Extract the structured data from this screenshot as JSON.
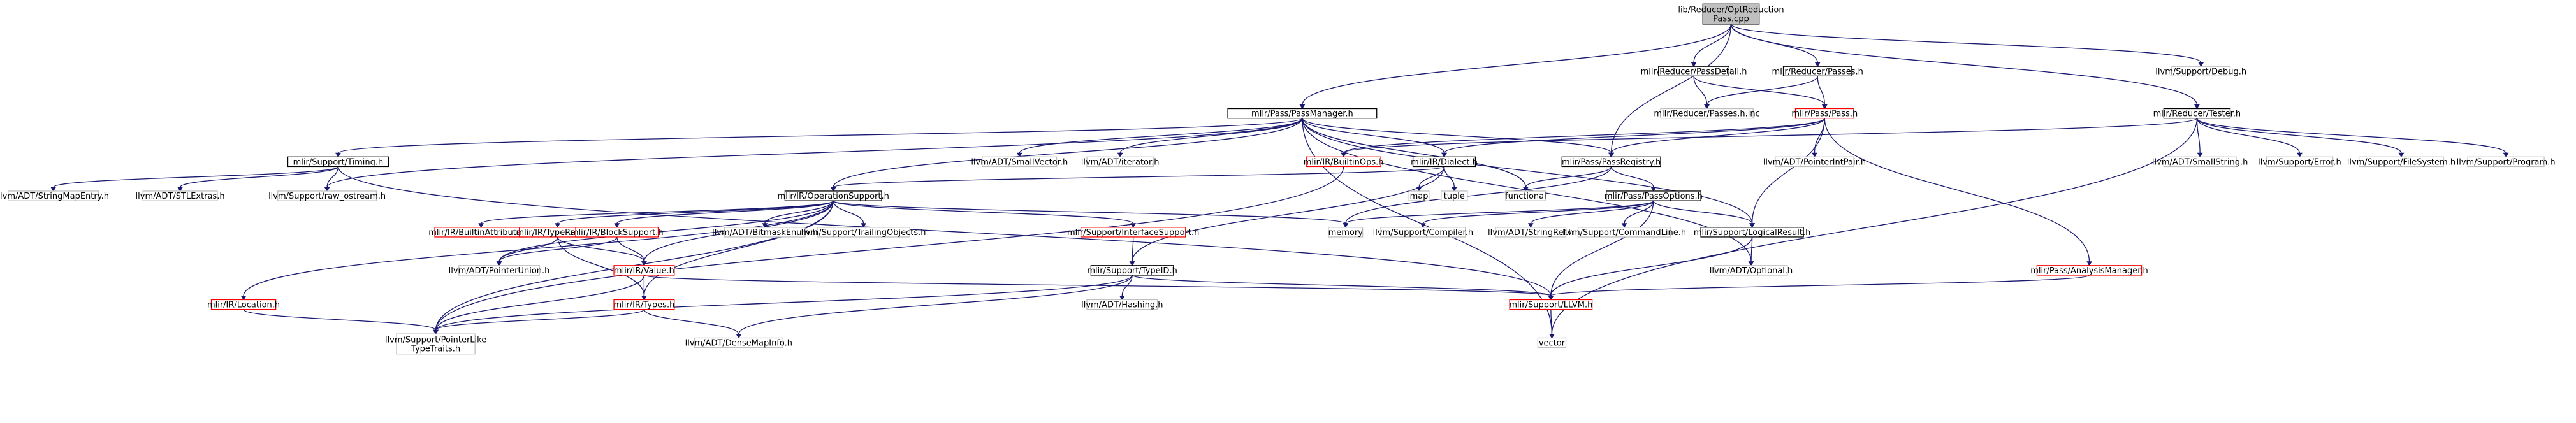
{
  "colors": {
    "edge": "#191970",
    "root_fill": "#bfbfbf",
    "documented_border": "#000000",
    "incomplete_border": "#ff0000",
    "external_border": "#bfbfbf"
  },
  "nodes": [
    {
      "id": "root",
      "lines": [
        "lib/Reducer/OptReduction",
        "Pass.cpp"
      ],
      "kind": "root"
    },
    {
      "id": "pass-manager",
      "lines": [
        "mlir/Pass/PassManager.h"
      ],
      "kind": "std"
    },
    {
      "id": "reducer-pass-detail",
      "lines": [
        "mlir/Reducer/PassDetail.h"
      ],
      "kind": "std"
    },
    {
      "id": "reducer-passes",
      "lines": [
        "mlir/Reducer/Passes.h"
      ],
      "kind": "std"
    },
    {
      "id": "reducer-tester",
      "lines": [
        "mlir/Reducer/Tester.h"
      ],
      "kind": "std"
    },
    {
      "id": "support-debug",
      "lines": [
        "llvm/Support/Debug.h"
      ],
      "kind": "gray"
    },
    {
      "id": "support-timing",
      "lines": [
        "mlir/Support/Timing.h"
      ],
      "kind": "std"
    },
    {
      "id": "small-vector",
      "lines": [
        "llvm/ADT/SmallVector.h"
      ],
      "kind": "gray"
    },
    {
      "id": "adt-iterator",
      "lines": [
        "llvm/ADT/iterator.h"
      ],
      "kind": "gray"
    },
    {
      "id": "builtin-ops",
      "lines": [
        "mlir/IR/BuiltinOps.h"
      ],
      "kind": "red"
    },
    {
      "id": "ir-dialect",
      "lines": [
        "mlir/IR/Dialect.h"
      ],
      "kind": "std"
    },
    {
      "id": "pass-registry",
      "lines": [
        "mlir/Pass/PassRegistry.h"
      ],
      "kind": "std"
    },
    {
      "id": "reducer-passes-inc",
      "lines": [
        "mlir/Reducer/Passes.h.inc"
      ],
      "kind": "gray"
    },
    {
      "id": "pass-pass",
      "lines": [
        "mlir/Pass/Pass.h"
      ],
      "kind": "red"
    },
    {
      "id": "pointer-int-pair",
      "lines": [
        "llvm/ADT/PointerIntPair.h"
      ],
      "kind": "gray"
    },
    {
      "id": "small-string",
      "lines": [
        "llvm/ADT/SmallString.h"
      ],
      "kind": "gray"
    },
    {
      "id": "support-error",
      "lines": [
        "llvm/Support/Error.h"
      ],
      "kind": "gray"
    },
    {
      "id": "support-filesystem",
      "lines": [
        "llvm/Support/FileSystem.h"
      ],
      "kind": "gray"
    },
    {
      "id": "support-program",
      "lines": [
        "llvm/Support/Program.h"
      ],
      "kind": "gray"
    },
    {
      "id": "string-map-entry",
      "lines": [
        "llvm/ADT/StringMapEntry.h"
      ],
      "kind": "gray"
    },
    {
      "id": "stl-extras",
      "lines": [
        "llvm/ADT/STLExtras.h"
      ],
      "kind": "gray"
    },
    {
      "id": "raw-ostream",
      "lines": [
        "llvm/Support/raw_ostream.h"
      ],
      "kind": "gray"
    },
    {
      "id": "operation-support",
      "lines": [
        "mlir/IR/OperationSupport.h"
      ],
      "kind": "std"
    },
    {
      "id": "map",
      "lines": [
        "map"
      ],
      "kind": "gray"
    },
    {
      "id": "tuple",
      "lines": [
        "tuple"
      ],
      "kind": "gray"
    },
    {
      "id": "functional",
      "lines": [
        "functional"
      ],
      "kind": "gray"
    },
    {
      "id": "pass-options",
      "lines": [
        "mlir/Pass/PassOptions.h"
      ],
      "kind": "std"
    },
    {
      "id": "builtin-attributes",
      "lines": [
        "mlir/IR/BuiltinAttributes.h"
      ],
      "kind": "red"
    },
    {
      "id": "type-range",
      "lines": [
        "mlir/IR/TypeRange.h"
      ],
      "kind": "red"
    },
    {
      "id": "block-support",
      "lines": [
        "mlir/IR/BlockSupport.h"
      ],
      "kind": "red"
    },
    {
      "id": "bitmask-enum",
      "lines": [
        "llvm/ADT/BitmaskEnum.h"
      ],
      "kind": "gray"
    },
    {
      "id": "trailing-objects",
      "lines": [
        "llvm/Support/TrailingObjects.h"
      ],
      "kind": "gray"
    },
    {
      "id": "interface-support",
      "lines": [
        "mlir/Support/InterfaceSupport.h"
      ],
      "kind": "red"
    },
    {
      "id": "memory",
      "lines": [
        "memory"
      ],
      "kind": "gray"
    },
    {
      "id": "support-compiler",
      "lines": [
        "llvm/Support/Compiler.h"
      ],
      "kind": "gray"
    },
    {
      "id": "string-ref",
      "lines": [
        "llvm/ADT/StringRef.h"
      ],
      "kind": "gray"
    },
    {
      "id": "command-line",
      "lines": [
        "llvm/Support/CommandLine.h"
      ],
      "kind": "gray"
    },
    {
      "id": "logical-result",
      "lines": [
        "mlir/Support/LogicalResult.h"
      ],
      "kind": "std"
    },
    {
      "id": "pointer-union",
      "lines": [
        "llvm/ADT/PointerUnion.h"
      ],
      "kind": "gray"
    },
    {
      "id": "ir-value",
      "lines": [
        "mlir/IR/Value.h"
      ],
      "kind": "red"
    },
    {
      "id": "type-id",
      "lines": [
        "mlir/Support/TypeID.h"
      ],
      "kind": "std"
    },
    {
      "id": "adt-optional",
      "lines": [
        "llvm/ADT/Optional.h"
      ],
      "kind": "gray"
    },
    {
      "id": "analysis-manager",
      "lines": [
        "mlir/Pass/AnalysisManager.h"
      ],
      "kind": "red"
    },
    {
      "id": "ir-location",
      "lines": [
        "mlir/IR/Location.h"
      ],
      "kind": "red"
    },
    {
      "id": "ir-types",
      "lines": [
        "mlir/IR/Types.h"
      ],
      "kind": "red"
    },
    {
      "id": "adt-hashing",
      "lines": [
        "llvm/ADT/Hashing.h"
      ],
      "kind": "gray"
    },
    {
      "id": "support-llvm",
      "lines": [
        "mlir/Support/LLVM.h"
      ],
      "kind": "red"
    },
    {
      "id": "pointer-like-type-traits",
      "lines": [
        "llvm/Support/PointerLike",
        "TypeTraits.h"
      ],
      "kind": "gray"
    },
    {
      "id": "dense-map-info",
      "lines": [
        "llvm/ADT/DenseMapInfo.h"
      ],
      "kind": "gray"
    },
    {
      "id": "vector",
      "lines": [
        "vector"
      ],
      "kind": "gray"
    }
  ],
  "edges": [
    [
      "root",
      "pass-manager"
    ],
    [
      "root",
      "reducer-pass-detail"
    ],
    [
      "root",
      "reducer-passes"
    ],
    [
      "root",
      "reducer-tester"
    ],
    [
      "root",
      "support-debug"
    ],
    [
      "root",
      "pass-registry"
    ],
    [
      "pass-manager",
      "support-timing"
    ],
    [
      "pass-manager",
      "small-vector"
    ],
    [
      "pass-manager",
      "adt-iterator"
    ],
    [
      "pass-manager",
      "ir-dialect"
    ],
    [
      "pass-manager",
      "operation-support"
    ],
    [
      "pass-manager",
      "functional"
    ],
    [
      "pass-manager",
      "logical-result"
    ],
    [
      "pass-manager",
      "adt-optional"
    ],
    [
      "pass-manager",
      "raw-ostream"
    ],
    [
      "pass-manager",
      "vector"
    ],
    [
      "pass-manager",
      "pass-registry"
    ],
    [
      "reducer-pass-detail",
      "reducer-passes-inc"
    ],
    [
      "reducer-pass-detail",
      "pass-pass"
    ],
    [
      "reducer-passes",
      "reducer-passes-inc"
    ],
    [
      "reducer-passes",
      "pass-pass"
    ],
    [
      "reducer-tester",
      "builtin-ops"
    ],
    [
      "reducer-tester",
      "small-string"
    ],
    [
      "reducer-tester",
      "support-error"
    ],
    [
      "reducer-tester",
      "support-filesystem"
    ],
    [
      "reducer-tester",
      "support-program"
    ],
    [
      "reducer-tester",
      "vector"
    ],
    [
      "pass-pass",
      "builtin-ops"
    ],
    [
      "pass-pass",
      "ir-dialect"
    ],
    [
      "pass-pass",
      "pass-registry"
    ],
    [
      "pass-pass",
      "pointer-int-pair"
    ],
    [
      "pass-pass",
      "logical-result"
    ],
    [
      "pass-pass",
      "analysis-manager"
    ],
    [
      "support-timing",
      "string-map-entry"
    ],
    [
      "support-timing",
      "stl-extras"
    ],
    [
      "support-timing",
      "raw-ostream"
    ],
    [
      "support-timing",
      "support-llvm"
    ],
    [
      "builtin-ops",
      "pointer-like-type-traits"
    ],
    [
      "ir-dialect",
      "operation-support"
    ],
    [
      "ir-dialect",
      "map"
    ],
    [
      "ir-dialect",
      "tuple"
    ],
    [
      "ir-dialect",
      "type-id"
    ],
    [
      "pass-registry",
      "functional"
    ],
    [
      "pass-registry",
      "pass-options"
    ],
    [
      "pass-registry",
      "memory"
    ],
    [
      "pass-options",
      "support-compiler"
    ],
    [
      "pass-options",
      "string-ref"
    ],
    [
      "pass-options",
      "command-line"
    ],
    [
      "pass-options",
      "logical-result"
    ],
    [
      "pass-options",
      "support-llvm"
    ],
    [
      "pass-options",
      "memory"
    ],
    [
      "operation-support",
      "builtin-attributes"
    ],
    [
      "operation-support",
      "type-range"
    ],
    [
      "operation-support",
      "block-support"
    ],
    [
      "operation-support",
      "bitmask-enum"
    ],
    [
      "operation-support",
      "trailing-objects"
    ],
    [
      "operation-support",
      "interface-support"
    ],
    [
      "operation-support",
      "memory"
    ],
    [
      "operation-support",
      "ir-location"
    ],
    [
      "operation-support",
      "ir-types"
    ],
    [
      "operation-support",
      "pointer-union"
    ],
    [
      "operation-support",
      "ir-value"
    ],
    [
      "operation-support",
      "pointer-like-type-traits"
    ],
    [
      "type-range",
      "pointer-union"
    ],
    [
      "type-range",
      "ir-value"
    ],
    [
      "type-range",
      "ir-types"
    ],
    [
      "block-support",
      "ir-value"
    ],
    [
      "block-support",
      "pointer-union"
    ],
    [
      "interface-support",
      "type-id"
    ],
    [
      "logical-result",
      "adt-optional"
    ],
    [
      "logical-result",
      "support-llvm"
    ],
    [
      "ir-value",
      "ir-types"
    ],
    [
      "ir-value",
      "support-llvm"
    ],
    [
      "ir-value",
      "pointer-like-type-traits"
    ],
    [
      "type-id",
      "support-llvm"
    ],
    [
      "type-id",
      "adt-hashing"
    ],
    [
      "type-id",
      "pointer-like-type-traits"
    ],
    [
      "type-id",
      "dense-map-info"
    ],
    [
      "analysis-manager",
      "support-llvm"
    ],
    [
      "ir-location",
      "pointer-like-type-traits"
    ],
    [
      "ir-types",
      "pointer-like-type-traits"
    ],
    [
      "ir-types",
      "dense-map-info"
    ],
    [
      "support-llvm",
      "vector"
    ]
  ]
}
